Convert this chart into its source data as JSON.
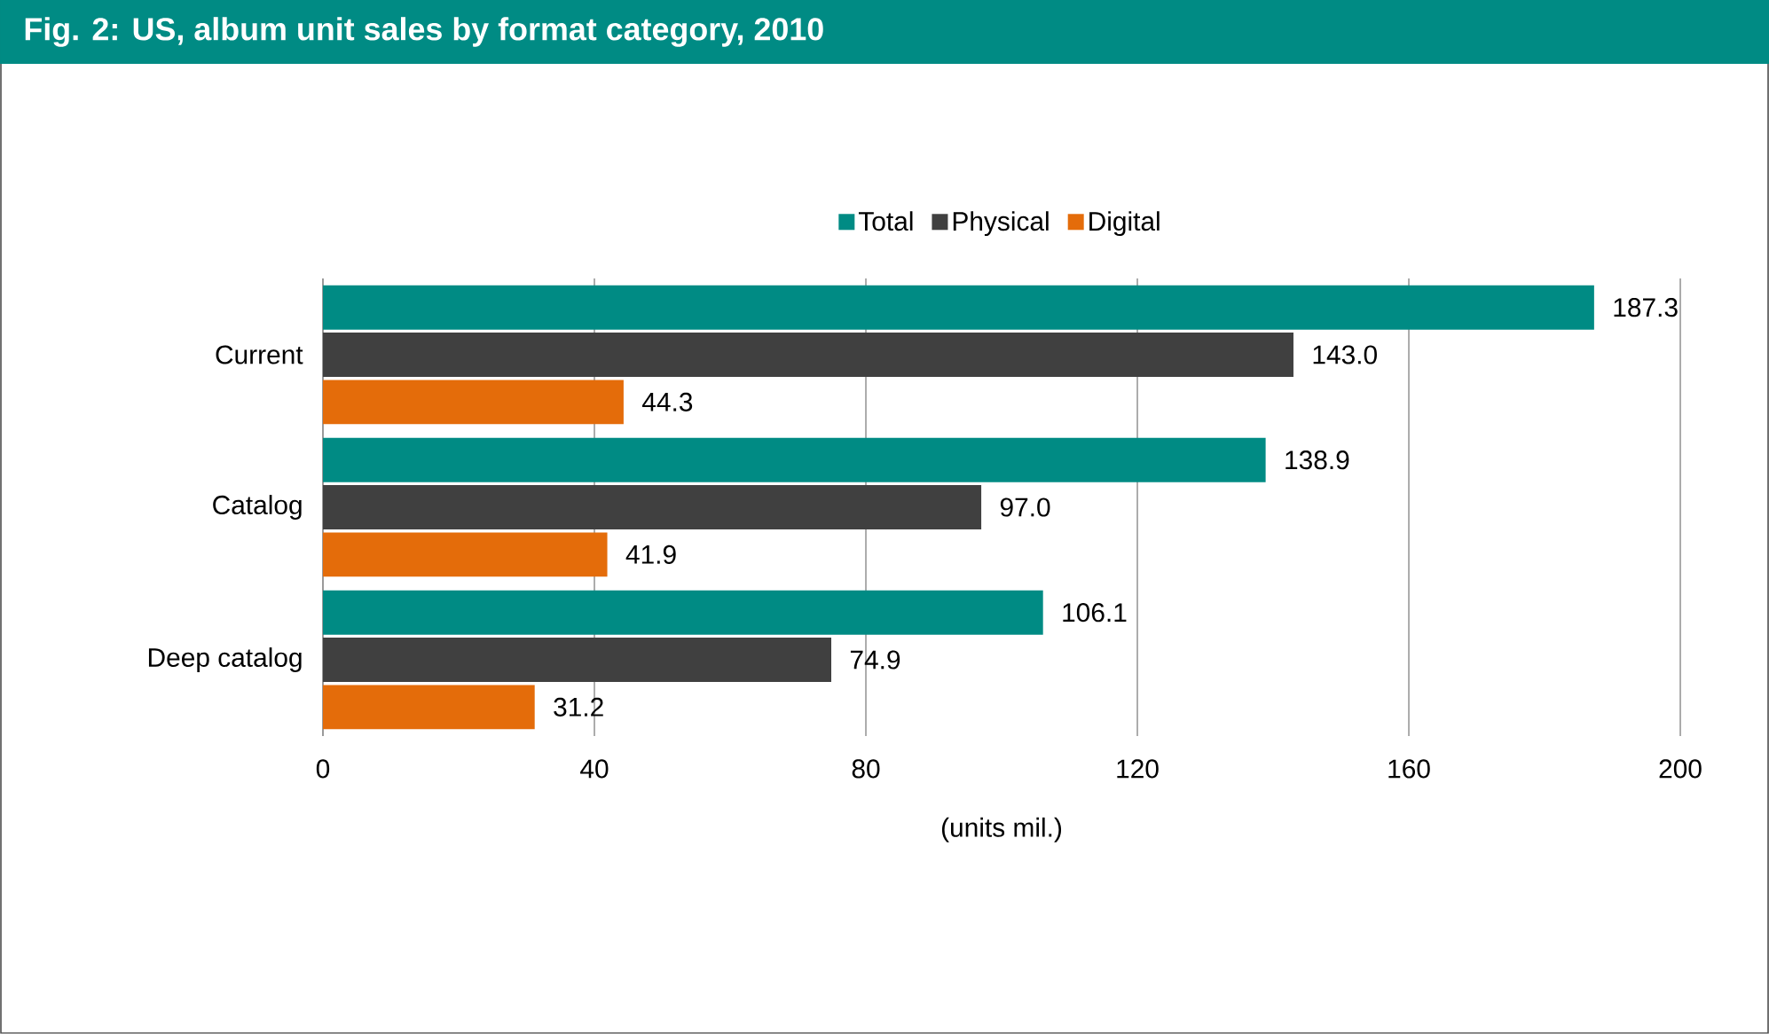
{
  "chart_data": {
    "type": "bar",
    "orientation": "horizontal",
    "title": "Fig. 2: US, album unit sales by format category, 2010",
    "xlabel": "(units mil.)",
    "categories": [
      "Current",
      "Catalog",
      "Deep catalog"
    ],
    "series": [
      {
        "name": "Total",
        "color": "#008b84",
        "values": [
          187.3,
          138.9,
          106.1
        ],
        "value_labels": [
          "187.3",
          "138.9",
          "106.1"
        ]
      },
      {
        "name": "Physical",
        "color": "#404040",
        "values": [
          143.0,
          97.0,
          74.9
        ],
        "value_labels": [
          "143.0",
          "97.0",
          "74.9"
        ]
      },
      {
        "name": "Digital",
        "color": "#e46c0a",
        "values": [
          44.3,
          41.9,
          31.2
        ],
        "value_labels": [
          "44.3",
          "41.9",
          "31.2"
        ]
      }
    ],
    "xlim": [
      0,
      200
    ],
    "xticks": [
      0,
      40,
      80,
      120,
      160,
      200
    ],
    "grid": "x",
    "legend": "top"
  }
}
